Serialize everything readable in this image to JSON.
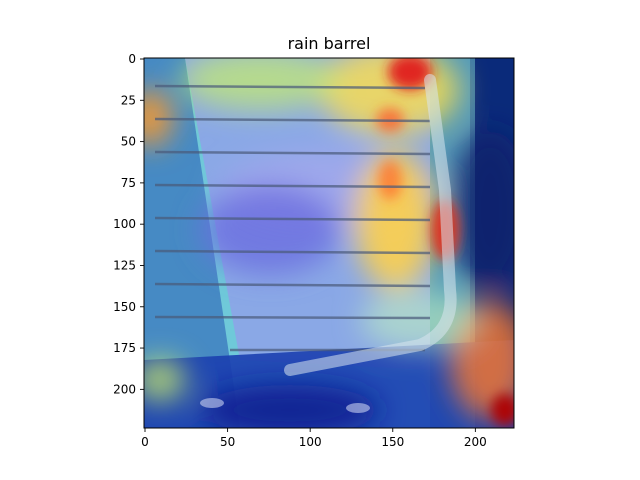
{
  "chart_data": {
    "type": "heatmap",
    "title": "rain barrel",
    "xlabel": "",
    "ylabel": "",
    "xlim": [
      0,
      224
    ],
    "ylim": [
      224,
      0
    ],
    "xticks": [
      0,
      50,
      100,
      150,
      200
    ],
    "yticks": [
      0,
      25,
      50,
      75,
      100,
      125,
      150,
      175,
      200
    ],
    "colormap": "jet",
    "grid": false,
    "background_image": "rain-barrel-photo-with-gutter-downspout",
    "hotspots": [
      {
        "x": 160,
        "y": 8,
        "intensity": 0.95
      },
      {
        "x": 185,
        "y": 105,
        "intensity": 0.92
      },
      {
        "x": 152,
        "y": 95,
        "intensity": 0.7
      },
      {
        "x": 150,
        "y": 40,
        "intensity": 0.65
      },
      {
        "x": 3,
        "y": 38,
        "intensity": 0.7
      },
      {
        "x": 218,
        "y": 212,
        "intensity": 0.95
      },
      {
        "x": 203,
        "y": 175,
        "intensity": 0.75
      },
      {
        "x": 5,
        "y": 185,
        "intensity": 0.55
      },
      {
        "x": 60,
        "y": 8,
        "intensity": 0.55
      },
      {
        "x": 115,
        "y": 210,
        "intensity": 0.5
      }
    ],
    "coldspots": [
      {
        "x": 210,
        "y": 50,
        "intensity": 0.05
      },
      {
        "x": 60,
        "y": 105,
        "intensity": 0.2
      },
      {
        "x": 45,
        "y": 215,
        "intensity": 0.05
      },
      {
        "x": 130,
        "y": 218,
        "intensity": 0.1
      }
    ]
  }
}
